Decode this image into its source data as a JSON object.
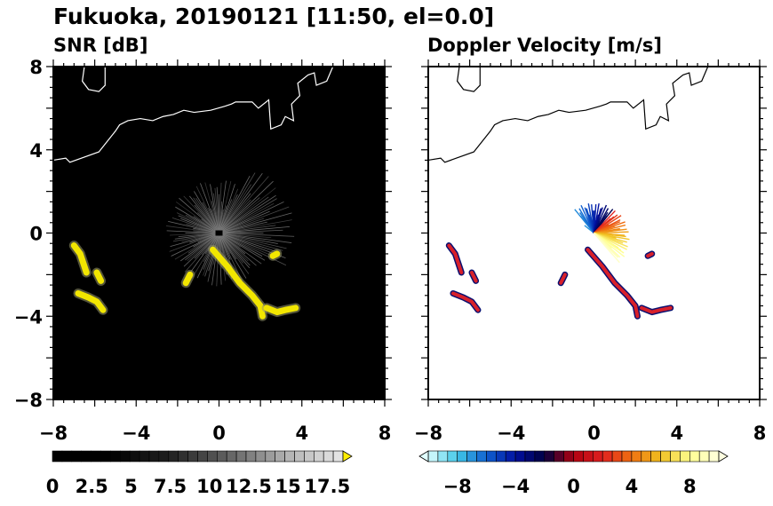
{
  "figure": {
    "title": "Fukuoka, 20190121 [11:50, el=0.0]"
  },
  "chart_data": [
    {
      "type": "heatmap",
      "title": "SNR [dB]",
      "background_color": "#000000",
      "coast_color": "#ffffff",
      "echo_color": "#f2e600",
      "xlim": [
        -8,
        8
      ],
      "ylim": [
        -8,
        8
      ],
      "xticks": [
        -8,
        -4,
        0,
        4,
        8
      ],
      "yticks": [
        -8,
        -4,
        0,
        4,
        8
      ],
      "colorbar": {
        "min": 0,
        "max": 18.5,
        "tick_values": [
          0,
          2.5,
          5,
          7.5,
          10,
          12.5,
          15,
          17.5
        ],
        "tick_labels": [
          "0",
          "2.5",
          "5",
          "7.5",
          "10",
          "12.5",
          "15",
          "17.5"
        ],
        "extend": "max",
        "colors": [
          "#000000",
          "#ffffff",
          "#ffee00"
        ]
      }
    },
    {
      "type": "heatmap",
      "title": "Doppler Velocity [m/s]",
      "background_color": "#ffffff",
      "coast_color": "#000000",
      "xlim": [
        -8,
        8
      ],
      "ylim": [
        -8,
        8
      ],
      "xticks": [
        -8,
        -4,
        0,
        4,
        8
      ],
      "yticks": [
        -8,
        -4,
        0,
        4,
        8
      ],
      "colorbar": {
        "min": -10,
        "max": 10,
        "tick_values": [
          -8,
          -4,
          0,
          4,
          8
        ],
        "tick_labels": [
          "−8",
          "−4",
          "0",
          "4",
          "8"
        ],
        "extend": "both",
        "colors": [
          "#e0ffff",
          "#40c8e8",
          "#1060d0",
          "#0010a0",
          "#000040",
          "#b00010",
          "#e02020",
          "#f07010",
          "#f0c020",
          "#ffff90",
          "#ffffe0"
        ]
      }
    }
  ],
  "echoes": {
    "bands": [
      [
        [
          -7.0,
          -0.6
        ],
        [
          -6.7,
          -1.0
        ],
        [
          -6.5,
          -1.6
        ],
        [
          -6.4,
          -1.9
        ]
      ],
      [
        [
          -5.9,
          -1.9
        ],
        [
          -5.7,
          -2.3
        ]
      ],
      [
        [
          -6.8,
          -2.9
        ],
        [
          -6.3,
          -3.1
        ],
        [
          -5.9,
          -3.3
        ],
        [
          -5.6,
          -3.7
        ]
      ],
      [
        [
          -0.3,
          -0.8
        ],
        [
          0.4,
          -1.6
        ],
        [
          1.0,
          -2.4
        ],
        [
          1.6,
          -3.0
        ],
        [
          2.0,
          -3.5
        ],
        [
          2.1,
          -4.0
        ]
      ],
      [
        [
          2.3,
          -3.6
        ],
        [
          2.8,
          -3.8
        ],
        [
          3.2,
          -3.7
        ],
        [
          3.7,
          -3.6
        ]
      ],
      [
        [
          -1.6,
          -2.4
        ],
        [
          -1.4,
          -2.0
        ]
      ],
      [
        [
          2.6,
          -1.1
        ],
        [
          2.8,
          -1.0
        ]
      ]
    ]
  },
  "coastline": [
    [
      [
        -8.0,
        3.5
      ],
      [
        -7.4,
        3.6
      ],
      [
        -7.2,
        3.4
      ],
      [
        -5.8,
        3.9
      ],
      [
        -5.0,
        4.9
      ],
      [
        -4.8,
        5.2
      ],
      [
        -4.4,
        5.4
      ],
      [
        -3.8,
        5.5
      ],
      [
        -3.2,
        5.4
      ],
      [
        -2.7,
        5.6
      ],
      [
        -2.2,
        5.7
      ],
      [
        -1.7,
        5.9
      ],
      [
        -1.2,
        5.8
      ],
      [
        -0.4,
        5.9
      ],
      [
        0.3,
        6.1
      ],
      [
        0.6,
        6.2
      ],
      [
        0.8,
        6.3
      ],
      [
        1.6,
        6.3
      ],
      [
        1.9,
        6.0
      ],
      [
        2.4,
        6.4
      ],
      [
        2.5,
        5.0
      ],
      [
        3.0,
        5.2
      ],
      [
        3.2,
        5.6
      ],
      [
        3.6,
        5.4
      ],
      [
        3.5,
        6.2
      ],
      [
        3.9,
        6.6
      ],
      [
        3.8,
        7.2
      ],
      [
        4.3,
        7.6
      ],
      [
        4.6,
        7.7
      ],
      [
        4.7,
        7.1
      ],
      [
        5.2,
        7.3
      ],
      [
        5.5,
        8.0
      ]
    ],
    [
      [
        -6.5,
        8.0
      ],
      [
        -6.6,
        7.3
      ],
      [
        -6.3,
        6.9
      ],
      [
        -5.8,
        6.8
      ],
      [
        -5.5,
        7.1
      ],
      [
        -5.5,
        8.0
      ]
    ]
  ]
}
